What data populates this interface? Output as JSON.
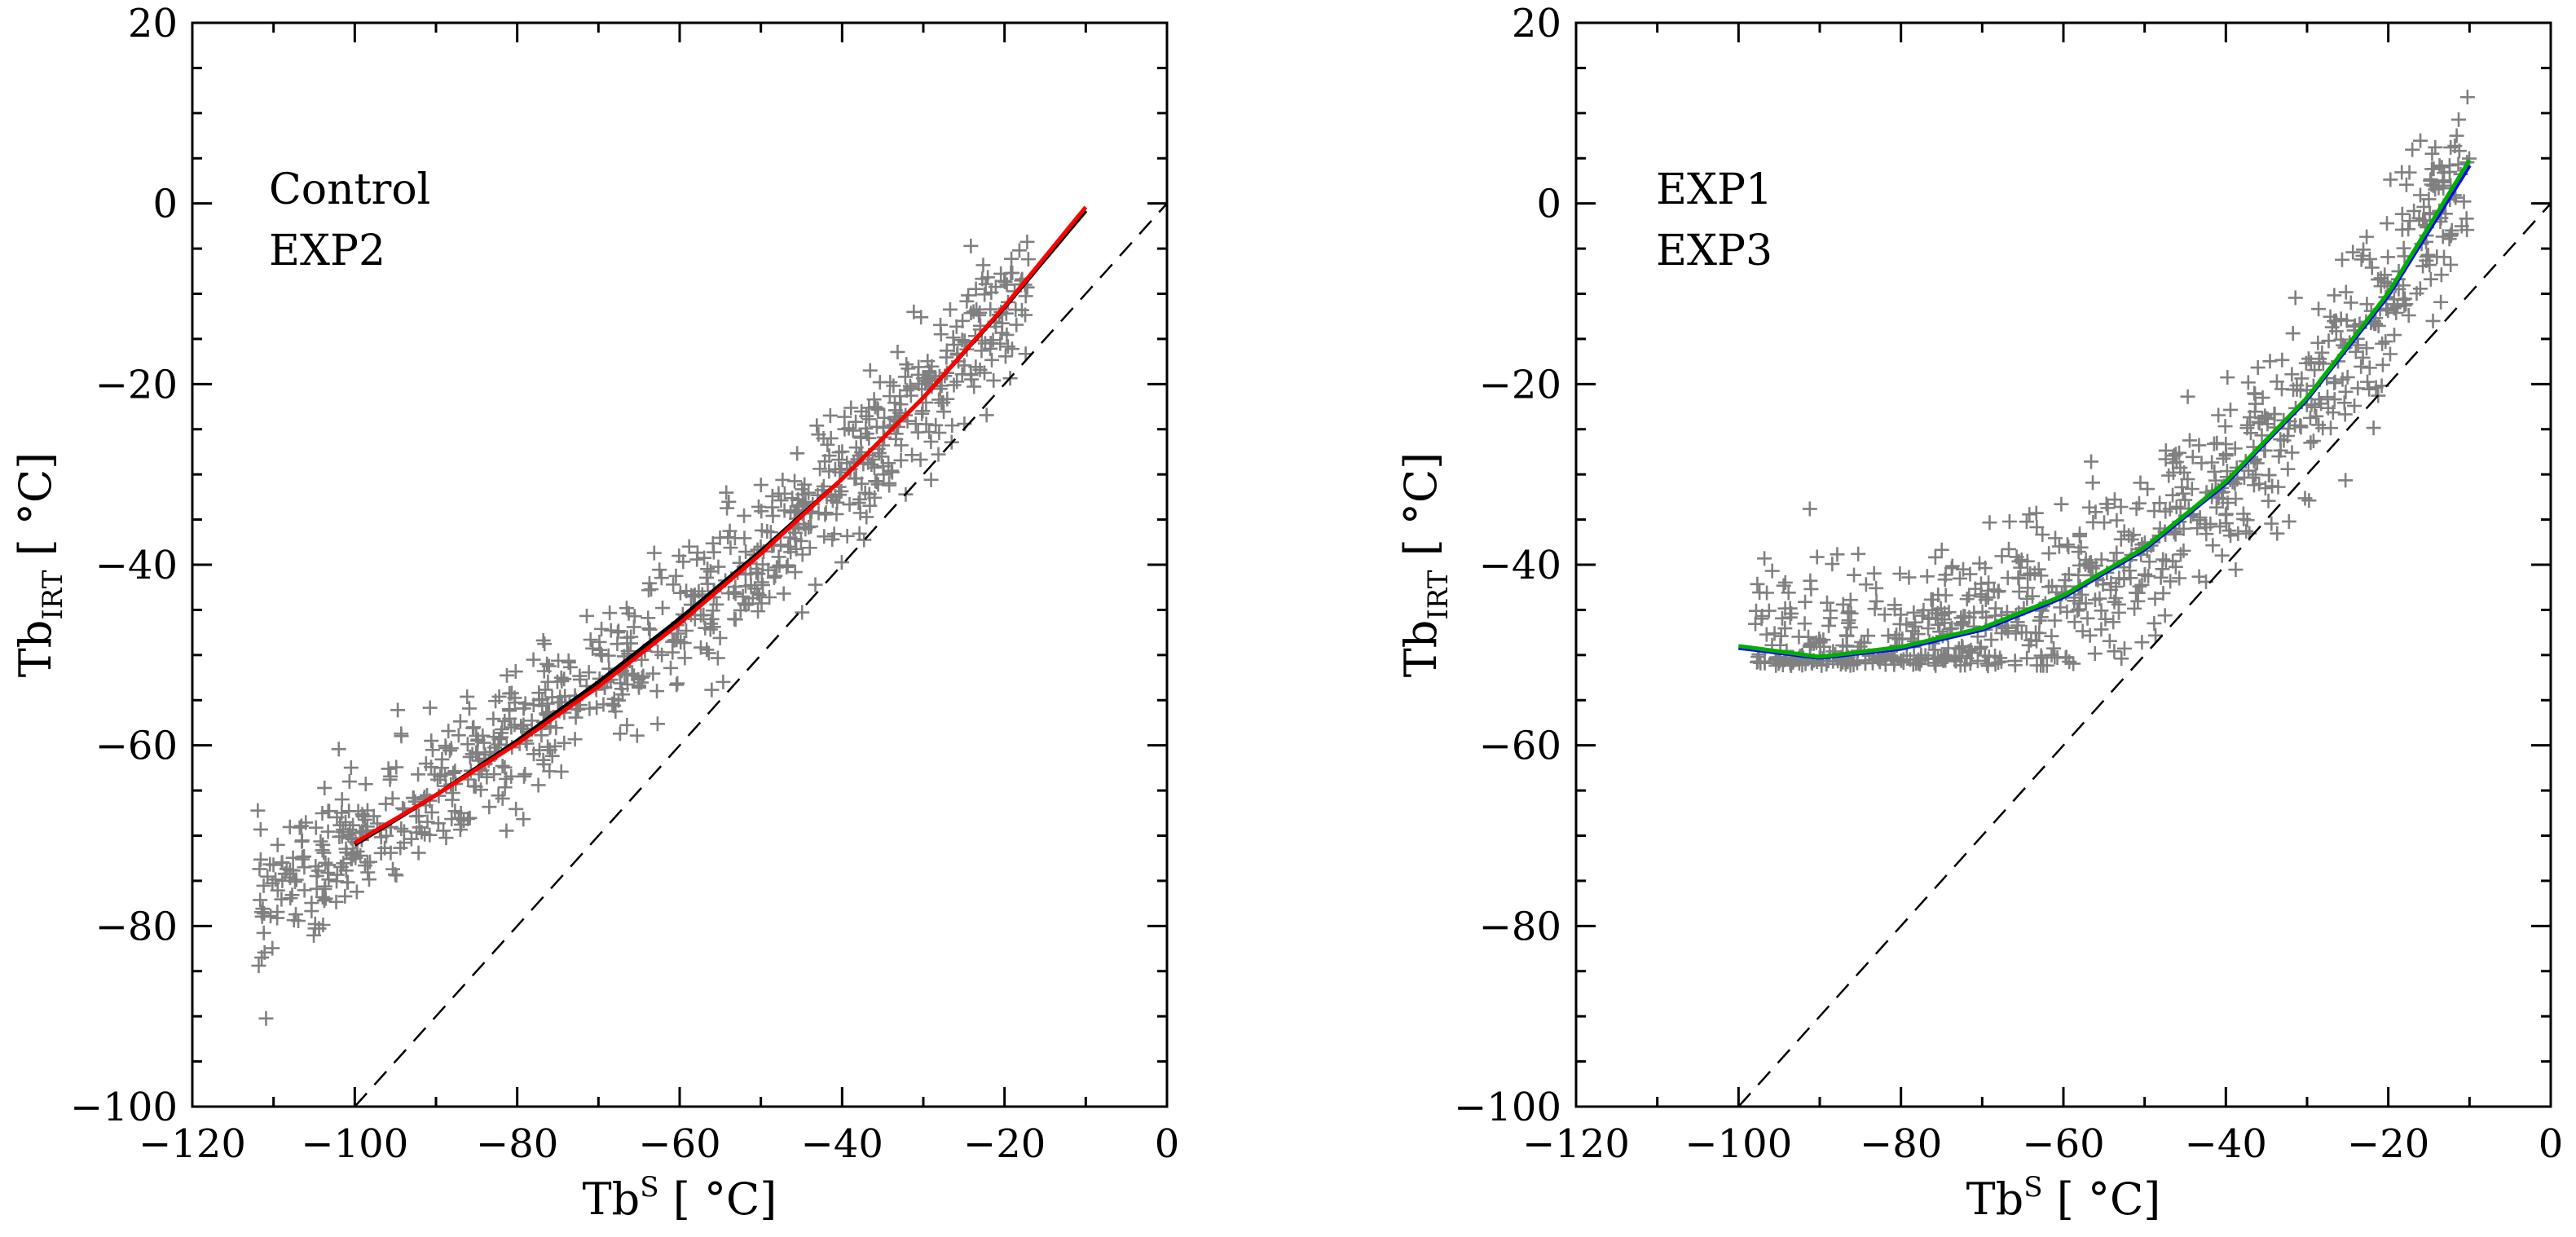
{
  "chart_data": [
    {
      "type": "scatter",
      "xlabel": {
        "main": "Tb",
        "sup": "S",
        "unit": " [ °C]"
      },
      "ylabel": {
        "main": "Tb",
        "sub": "IRT",
        "unit": " [ °C]"
      },
      "xlim": [
        -120,
        0
      ],
      "ylim": [
        -100,
        20
      ],
      "xticks": [
        -120,
        -100,
        -80,
        -60,
        -40,
        -20,
        0
      ],
      "yticks": [
        -100,
        -80,
        -60,
        -40,
        -20,
        0,
        20
      ],
      "xtick_labels": [
        "−120",
        "−100",
        "−80",
        "−60",
        "−40",
        "−20",
        "0"
      ],
      "ytick_labels": [
        "−100",
        "−80",
        "−60",
        "−40",
        "−20",
        "0",
        "20"
      ],
      "grid": false,
      "legend_position": "top-left",
      "one_to_one_line": {
        "x": [
          -100,
          0
        ],
        "y": [
          -100,
          0
        ],
        "style": "dashed"
      },
      "scatter": {
        "marker": "plus",
        "color": "#808080",
        "count": 900,
        "x_range": [
          -112,
          -17
        ],
        "relation": "y ≈ fitted curve ± 4 °C"
      },
      "series": [
        {
          "name": "Control",
          "color": "#000000",
          "x": [
            -100,
            -90,
            -80,
            -70,
            -60,
            -50,
            -40,
            -30,
            -20,
            -10
          ],
          "y": [
            -71,
            -65.5,
            -59.5,
            -53,
            -46,
            -38.5,
            -30.5,
            -21.5,
            -11.5,
            -0.8
          ]
        },
        {
          "name": "EXP2",
          "color": "#ff0000",
          "x": [
            -100,
            -90,
            -80,
            -70,
            -60,
            -50,
            -40,
            -30,
            -20,
            -10
          ],
          "y": [
            -70.8,
            -65.5,
            -59.8,
            -53.5,
            -46.5,
            -38.8,
            -30.5,
            -21.5,
            -11.4,
            -0.4
          ]
        }
      ]
    },
    {
      "type": "scatter",
      "xlabel": {
        "main": "Tb",
        "sup": "S",
        "unit": " [ °C]"
      },
      "ylabel": {
        "main": "Tb",
        "sub": "IRT",
        "unit": " [ °C]"
      },
      "xlim": [
        -120,
        0
      ],
      "ylim": [
        -100,
        20
      ],
      "xticks": [
        -120,
        -100,
        -80,
        -60,
        -40,
        -20,
        0
      ],
      "yticks": [
        -100,
        -80,
        -60,
        -40,
        -20,
        0,
        20
      ],
      "xtick_labels": [
        "−120",
        "−100",
        "−80",
        "−60",
        "−40",
        "−20",
        "0"
      ],
      "ytick_labels": [
        "−100",
        "−80",
        "−60",
        "−40",
        "−20",
        "0",
        "20"
      ],
      "grid": false,
      "legend_position": "top-left",
      "one_to_one_line": {
        "x": [
          -100,
          0
        ],
        "y": [
          -100,
          0
        ],
        "style": "dashed"
      },
      "scatter": {
        "marker": "plus",
        "color": "#808080",
        "count": 900,
        "x_range": [
          -98,
          -10
        ],
        "floor": -50,
        "relation": "y ≈ max(-50, fitted curve ± 5 °C)"
      },
      "series": [
        {
          "name": "EXP1",
          "color": "#0000ff",
          "x": [
            -100,
            -90,
            -80,
            -70,
            -60,
            -50,
            -40,
            -30,
            -20,
            -10
          ],
          "y": [
            -49.2,
            -50.3,
            -49.3,
            -47.2,
            -43.6,
            -38.3,
            -31,
            -21.7,
            -10.2,
            4.2
          ]
        },
        {
          "name": "EXP3",
          "color": "#00b000",
          "x": [
            -100,
            -90,
            -80,
            -70,
            -60,
            -50,
            -40,
            -30,
            -20,
            -10
          ],
          "y": [
            -49,
            -50.2,
            -49.1,
            -47,
            -43.4,
            -38.1,
            -30.8,
            -21.5,
            -9.9,
            4.8
          ]
        }
      ]
    }
  ]
}
